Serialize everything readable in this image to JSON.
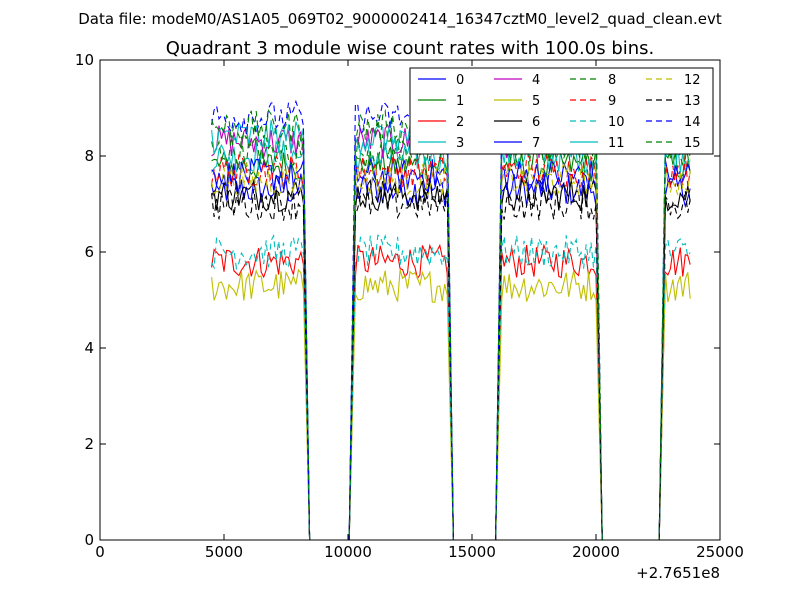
{
  "figure_title": "Data file: modeM0/AS1A05_069T02_9000002414_16347cztM0_level2_quad_clean.evt",
  "chart_data": {
    "type": "line",
    "title": "Quadrant 3 module wise count rates with 100.0s bins.",
    "xlabel": "",
    "ylabel": "",
    "x_offset_label": "+2.7651e8",
    "xlim": [
      0,
      25000
    ],
    "ylim": [
      0,
      10
    ],
    "x_ticks": [
      0,
      5000,
      10000,
      15000,
      20000,
      25000
    ],
    "y_ticks": [
      0,
      2,
      4,
      6,
      8,
      10
    ],
    "grid": false,
    "legend": {
      "placement": "top-right",
      "columns": 4
    },
    "segments": [
      [
        4500,
        8200
      ],
      [
        10300,
        14000
      ],
      [
        16200,
        20000
      ],
      [
        22800,
        23800
      ]
    ],
    "series": [
      {
        "name": "0",
        "color": "#0000ff",
        "dash": "solid",
        "level": 7.3
      },
      {
        "name": "1",
        "color": "#008000",
        "dash": "solid",
        "level": 7.8
      },
      {
        "name": "2",
        "color": "#ff0000",
        "dash": "solid",
        "level": 5.8
      },
      {
        "name": "3",
        "color": "#00bfbf",
        "dash": "solid",
        "level": 8.0
      },
      {
        "name": "4",
        "color": "#bf00bf",
        "dash": "solid",
        "level": 8.3
      },
      {
        "name": "5",
        "color": "#bfbf00",
        "dash": "solid",
        "level": 5.3
      },
      {
        "name": "6",
        "color": "#000000",
        "dash": "solid",
        "level": 7.2
      },
      {
        "name": "7",
        "color": "#0000ff",
        "dash": "solid",
        "level": 7.6
      },
      {
        "name": "8",
        "color": "#008000",
        "dash": "dashed",
        "level": 8.1
      },
      {
        "name": "9",
        "color": "#ff0000",
        "dash": "dashed",
        "level": 7.7
      },
      {
        "name": "10",
        "color": "#00bfbf",
        "dash": "dashed",
        "level": 6.0
      },
      {
        "name": "11",
        "color": "#00bfbf",
        "dash": "solid",
        "level": 8.4
      },
      {
        "name": "12",
        "color": "#bfbf00",
        "dash": "dashed",
        "level": 7.5
      },
      {
        "name": "13",
        "color": "#000000",
        "dash": "dashed",
        "level": 7.0
      },
      {
        "name": "14",
        "color": "#0000ff",
        "dash": "dashed",
        "level": 8.8
      },
      {
        "name": "15",
        "color": "#008000",
        "dash": "dashed",
        "level": 8.6
      }
    ],
    "noise_amplitude": 0.35
  }
}
